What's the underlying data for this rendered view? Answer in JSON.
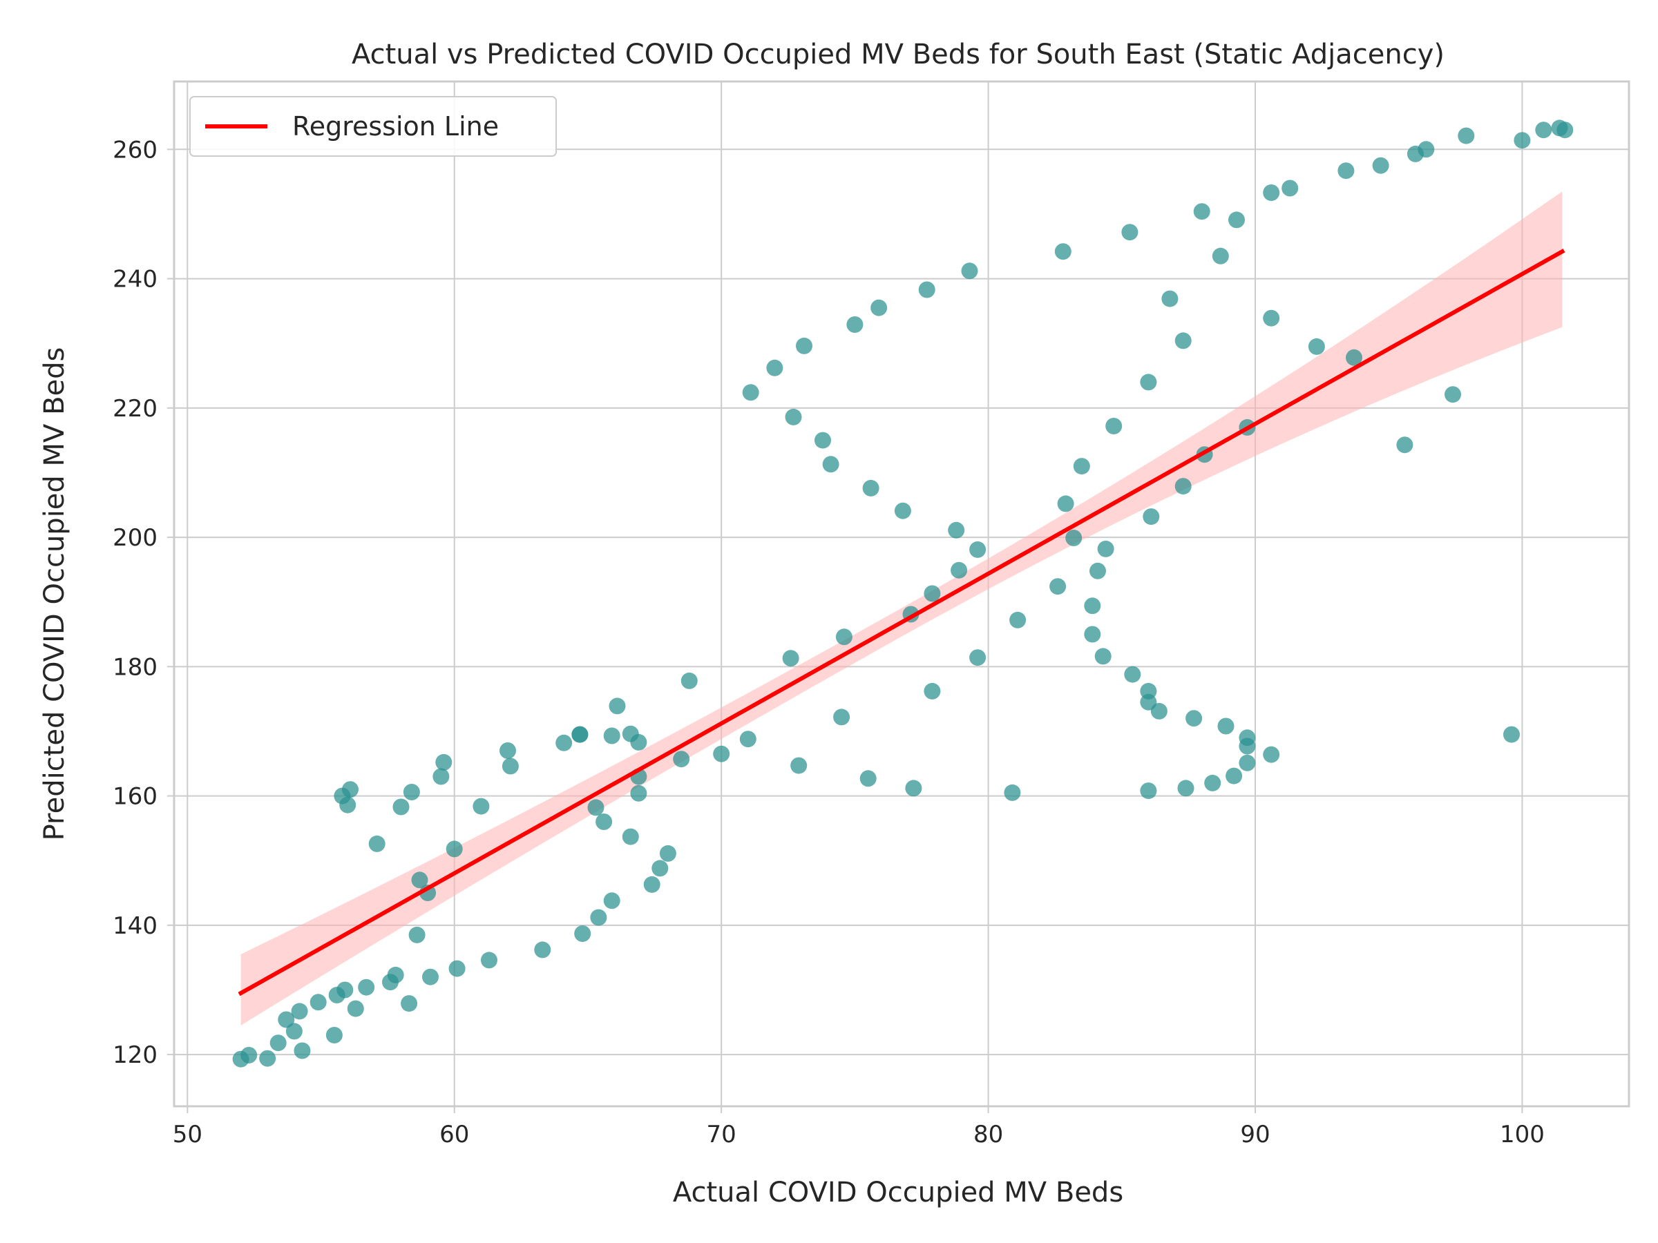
{
  "chart_data": {
    "type": "scatter",
    "title": "Actual vs Predicted COVID Occupied MV Beds for South East (Static Adjacency)",
    "xlabel": "Actual COVID Occupied MV Beds",
    "ylabel": "Predicted COVID Occupied MV Beds",
    "xlim": [
      49.5,
      104
    ],
    "ylim": [
      112,
      270.5
    ],
    "xticks": [
      50,
      60,
      70,
      80,
      90,
      100
    ],
    "yticks": [
      120,
      140,
      160,
      180,
      200,
      220,
      240,
      260
    ],
    "grid": true,
    "legend": {
      "position": "top-left",
      "entries": [
        "Regression Line"
      ]
    },
    "colors": {
      "points": "#2a9090",
      "regression": "#ff0000",
      "band": "#ffb3b3",
      "grid": "#cccccc",
      "axes": "#cccccc"
    },
    "regression": {
      "x": [
        52,
        101.5
      ],
      "y": [
        129.5,
        244.2
      ],
      "ci_lower": [
        124.5,
        232.5
      ],
      "ci_upper": [
        135.5,
        253.5
      ],
      "ci_center_x": 76.5,
      "ci_center_halfwidth": 2.2
    },
    "points": [
      [
        52.0,
        119.3
      ],
      [
        52.3,
        119.9
      ],
      [
        53.0,
        119.4
      ],
      [
        53.4,
        121.8
      ],
      [
        53.7,
        125.4
      ],
      [
        54.0,
        123.6
      ],
      [
        54.2,
        126.7
      ],
      [
        54.3,
        120.6
      ],
      [
        54.9,
        128.1
      ],
      [
        55.5,
        123.0
      ],
      [
        55.6,
        129.2
      ],
      [
        55.9,
        130.0
      ],
      [
        56.3,
        127.1
      ],
      [
        56.7,
        130.4
      ],
      [
        57.6,
        131.2
      ],
      [
        57.8,
        132.3
      ],
      [
        58.3,
        127.9
      ],
      [
        58.6,
        138.5
      ],
      [
        58.7,
        147.0
      ],
      [
        59.0,
        145.0
      ],
      [
        59.1,
        132.0
      ],
      [
        60.1,
        133.3
      ],
      [
        61.3,
        134.6
      ],
      [
        63.3,
        136.2
      ],
      [
        64.8,
        138.7
      ],
      [
        65.4,
        141.2
      ],
      [
        65.9,
        143.8
      ],
      [
        67.4,
        146.3
      ],
      [
        67.7,
        148.8
      ],
      [
        68.0,
        151.1
      ],
      [
        55.8,
        160.0
      ],
      [
        56.0,
        158.6
      ],
      [
        56.1,
        161.0
      ],
      [
        57.1,
        152.6
      ],
      [
        58.0,
        158.3
      ],
      [
        58.4,
        160.6
      ],
      [
        59.5,
        163.0
      ],
      [
        59.6,
        165.2
      ],
      [
        60.0,
        151.8
      ],
      [
        61.0,
        158.4
      ],
      [
        62.0,
        167.0
      ],
      [
        62.1,
        164.6
      ],
      [
        64.1,
        168.2
      ],
      [
        64.7,
        169.5
      ],
      [
        64.7,
        169.5
      ],
      [
        65.3,
        158.2
      ],
      [
        65.6,
        156.0
      ],
      [
        65.9,
        169.3
      ],
      [
        66.1,
        173.9
      ],
      [
        66.6,
        153.7
      ],
      [
        66.6,
        169.6
      ],
      [
        66.9,
        160.4
      ],
      [
        66.9,
        168.3
      ],
      [
        66.9,
        163.0
      ],
      [
        68.5,
        165.7
      ],
      [
        68.8,
        177.8
      ],
      [
        70.0,
        166.5
      ],
      [
        71.0,
        168.8
      ],
      [
        72.6,
        181.3
      ],
      [
        72.9,
        164.7
      ],
      [
        74.5,
        172.2
      ],
      [
        74.6,
        184.6
      ],
      [
        75.5,
        162.7
      ],
      [
        77.1,
        188.1
      ],
      [
        77.2,
        161.2
      ],
      [
        77.9,
        176.2
      ],
      [
        77.9,
        191.3
      ],
      [
        78.8,
        201.1
      ],
      [
        78.9,
        194.9
      ],
      [
        79.6,
        181.4
      ],
      [
        79.6,
        198.1
      ],
      [
        80.9,
        160.5
      ],
      [
        81.1,
        187.2
      ],
      [
        82.6,
        192.4
      ],
      [
        82.9,
        205.2
      ],
      [
        83.2,
        199.9
      ],
      [
        83.5,
        211.0
      ],
      [
        83.9,
        189.4
      ],
      [
        83.9,
        185.0
      ],
      [
        84.1,
        194.8
      ],
      [
        84.3,
        181.6
      ],
      [
        84.4,
        198.2
      ],
      [
        84.7,
        217.2
      ],
      [
        85.4,
        178.8
      ],
      [
        86.0,
        176.2
      ],
      [
        86.0,
        174.5
      ],
      [
        86.0,
        160.8
      ],
      [
        86.0,
        224.0
      ],
      [
        86.1,
        203.2
      ],
      [
        86.4,
        173.1
      ],
      [
        87.3,
        207.9
      ],
      [
        87.3,
        230.4
      ],
      [
        87.4,
        161.2
      ],
      [
        87.7,
        172.0
      ],
      [
        88.1,
        212.8
      ],
      [
        88.4,
        162.0
      ],
      [
        88.9,
        170.8
      ],
      [
        89.2,
        163.1
      ],
      [
        89.7,
        169.0
      ],
      [
        89.7,
        167.7
      ],
      [
        89.7,
        217.0
      ],
      [
        89.7,
        165.1
      ],
      [
        90.6,
        166.4
      ],
      [
        90.6,
        233.9
      ],
      [
        92.3,
        229.5
      ],
      [
        93.7,
        227.8
      ],
      [
        95.6,
        214.3
      ],
      [
        97.4,
        222.1
      ],
      [
        99.6,
        169.5
      ],
      [
        71.1,
        222.4
      ],
      [
        72.0,
        226.2
      ],
      [
        72.7,
        218.6
      ],
      [
        73.1,
        229.6
      ],
      [
        73.8,
        215.0
      ],
      [
        74.1,
        211.3
      ],
      [
        75.0,
        232.9
      ],
      [
        75.6,
        207.6
      ],
      [
        75.9,
        235.5
      ],
      [
        76.8,
        204.1
      ],
      [
        77.7,
        238.3
      ],
      [
        79.3,
        241.2
      ],
      [
        82.8,
        244.2
      ],
      [
        85.3,
        247.2
      ],
      [
        86.8,
        236.9
      ],
      [
        88.0,
        250.4
      ],
      [
        88.7,
        243.5
      ],
      [
        89.3,
        249.1
      ],
      [
        90.6,
        253.3
      ],
      [
        91.3,
        254.0
      ],
      [
        93.4,
        256.7
      ],
      [
        94.7,
        257.5
      ],
      [
        96.0,
        259.3
      ],
      [
        96.4,
        260.0
      ],
      [
        97.9,
        262.1
      ],
      [
        100.0,
        261.4
      ],
      [
        100.8,
        263.0
      ],
      [
        101.4,
        263.3
      ],
      [
        101.6,
        263.0
      ]
    ]
  }
}
